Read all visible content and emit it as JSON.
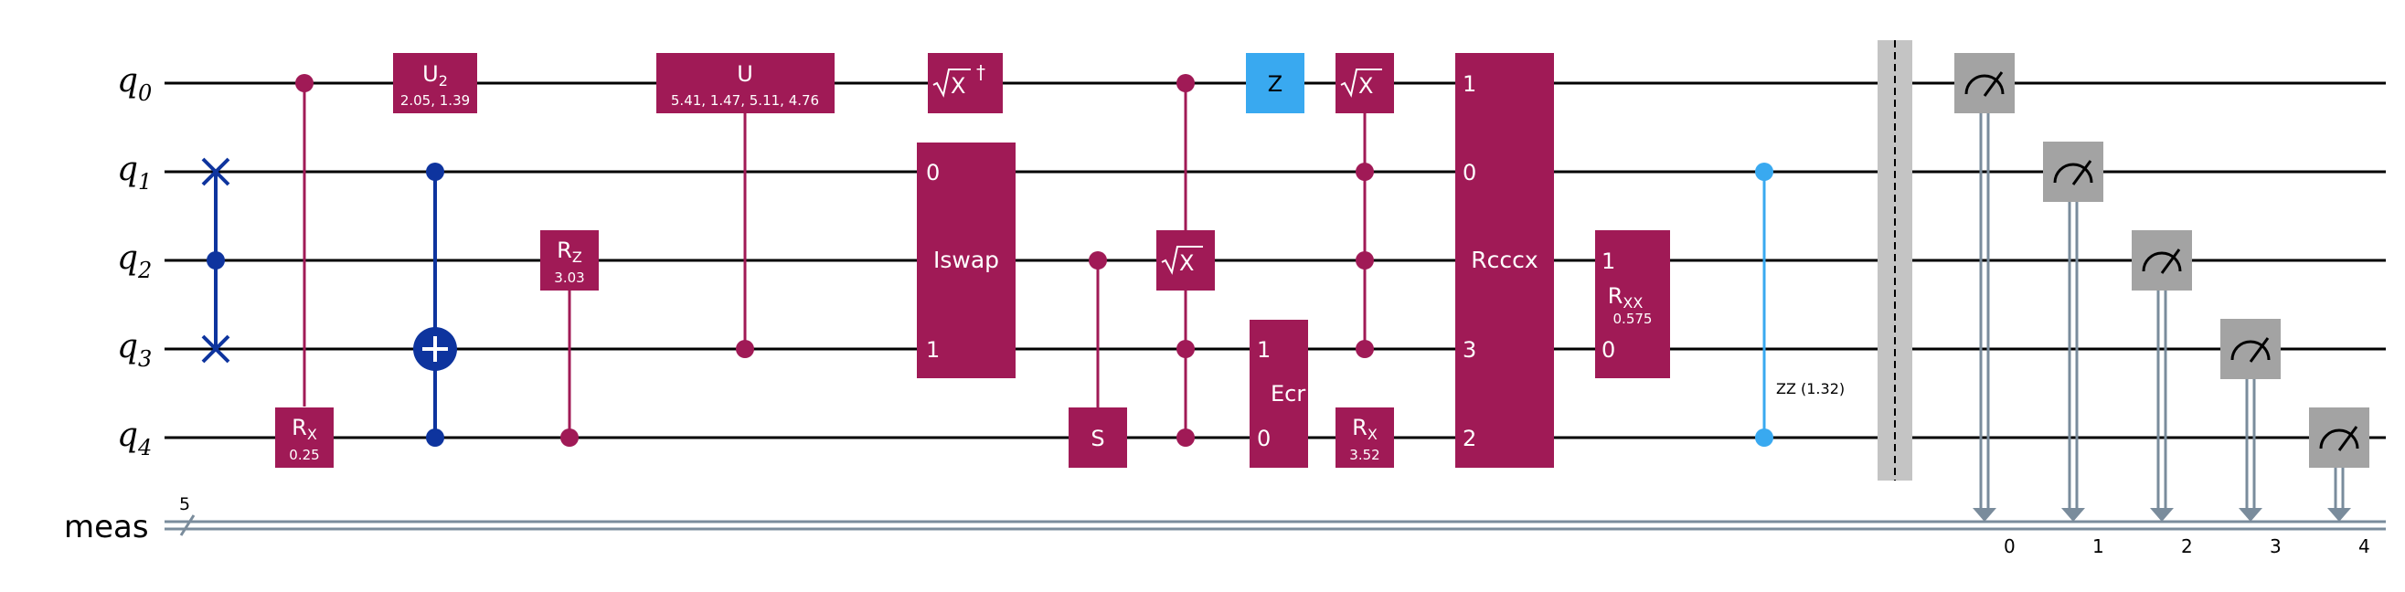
{
  "qubits": [
    {
      "label_main": "q",
      "label_sub": "0"
    },
    {
      "label_main": "q",
      "label_sub": "1"
    },
    {
      "label_main": "q",
      "label_sub": "2"
    },
    {
      "label_main": "q",
      "label_sub": "3"
    },
    {
      "label_main": "q",
      "label_sub": "4"
    }
  ],
  "classical": {
    "label": "meas",
    "width": "5"
  },
  "colors": {
    "magenta_gate": "#A01A56",
    "blue_gate": "#0E349E",
    "cyan_gate": "#39A9F0",
    "barrier": "#C4C4C4",
    "measure": "#A3A3A3",
    "classical_line": "#7A8C9C"
  },
  "gates": {
    "rx_q4": {
      "main": "R",
      "sub": "X",
      "param": "0.25"
    },
    "u2": {
      "main": "U",
      "sub": "2",
      "param": "2.05, 1.39"
    },
    "rz": {
      "main": "R",
      "sub": "Z",
      "param": "3.03"
    },
    "u": {
      "label": "U",
      "param": "5.41, 1.47, 5.11, 4.76"
    },
    "sxdg": {
      "radicand": "X",
      "dagger": "†"
    },
    "iswap": {
      "label": "Iswap",
      "port_top": "0",
      "port_bottom": "1"
    },
    "s": {
      "label": "S"
    },
    "csx": {
      "radicand": "X"
    },
    "z": {
      "label": "Z"
    },
    "ccsx": {
      "radicand": "X"
    },
    "ecr": {
      "label": "Ecr",
      "port_top": "1",
      "port_bottom": "0"
    },
    "rx_q4b": {
      "main": "R",
      "sub": "X",
      "param": "3.52"
    },
    "rcccx": {
      "label": "Rcccx",
      "port_q0": "1",
      "port_q1": "0",
      "port_q3": "3",
      "port_q4": "2"
    },
    "rxx": {
      "main": "R",
      "sub": "XX",
      "param": "0.575",
      "port_top": "1",
      "port_bottom": "0"
    },
    "zz": {
      "label": "ZZ (1.32)"
    }
  },
  "measurements": [
    {
      "index": "0"
    },
    {
      "index": "1"
    },
    {
      "index": "2"
    },
    {
      "index": "3"
    },
    {
      "index": "4"
    }
  ]
}
